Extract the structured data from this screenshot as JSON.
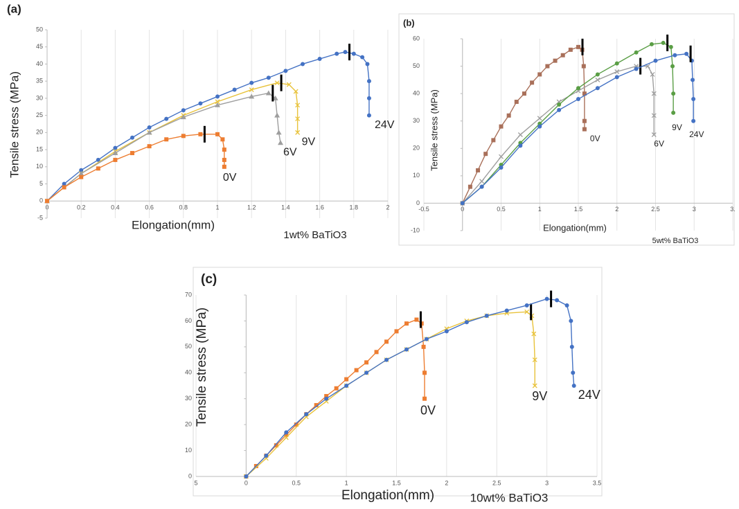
{
  "chart_data": [
    {
      "type": "line",
      "panel_label": "(a)",
      "annotation": "1wt% BaTiO3",
      "x_label": "Elongation(mm)",
      "y_label": "Tensile stress (MPa)",
      "xlim": [
        0,
        2
      ],
      "ylim": [
        -5,
        50
      ],
      "xticks": [
        0,
        0.2,
        0.4,
        0.6,
        0.8,
        1,
        1.2,
        1.4,
        1.6,
        1.8,
        2
      ],
      "yticks": [
        -5,
        0,
        5,
        10,
        15,
        20,
        25,
        30,
        35,
        40,
        45,
        50
      ],
      "grid": "x",
      "series": [
        {
          "name": "24V",
          "color": "#4472c4",
          "marker": "circle",
          "x": [
            0,
            0.1,
            0.2,
            0.3,
            0.4,
            0.5,
            0.6,
            0.7,
            0.8,
            0.9,
            1.0,
            1.1,
            1.2,
            1.3,
            1.4,
            1.5,
            1.6,
            1.7,
            1.75,
            1.8,
            1.85,
            1.88,
            1.89,
            1.89,
            1.89
          ],
          "values": [
            0,
            5,
            9,
            12,
            15.5,
            18.5,
            21.5,
            24,
            26.5,
            28.5,
            30.5,
            32.5,
            34.5,
            36,
            38,
            40,
            41.5,
            43,
            43.5,
            43,
            42,
            40,
            35,
            30,
            25
          ]
        },
        {
          "name": "9V",
          "color": "#e8c23a",
          "marker": "x",
          "x": [
            0,
            0.2,
            0.4,
            0.6,
            0.8,
            1.0,
            1.2,
            1.35,
            1.42,
            1.46,
            1.47,
            1.47,
            1.47
          ],
          "values": [
            0,
            8,
            14.5,
            20,
            25,
            29,
            32.5,
            34.5,
            34,
            32,
            28,
            24,
            20
          ]
        },
        {
          "name": "6V",
          "color": "#9e9e9e",
          "marker": "triangle",
          "x": [
            0,
            0.2,
            0.4,
            0.6,
            0.8,
            1.0,
            1.2,
            1.3,
            1.34,
            1.35,
            1.36,
            1.37
          ],
          "values": [
            0,
            8,
            14,
            20,
            24.5,
            28,
            30.5,
            31.5,
            30,
            25,
            20,
            17
          ]
        },
        {
          "name": "0V",
          "color": "#ed7d31",
          "marker": "square",
          "x": [
            0,
            0.1,
            0.2,
            0.3,
            0.4,
            0.5,
            0.6,
            0.7,
            0.8,
            0.9,
            1.0,
            1.03,
            1.04,
            1.04,
            1.04
          ],
          "values": [
            0,
            4,
            7,
            9.5,
            12,
            14,
            16,
            18,
            19,
            19.5,
            19.5,
            18,
            15,
            12,
            10
          ]
        }
      ]
    },
    {
      "type": "line",
      "panel_label": "(b)",
      "annotation": "5wt% BaTiO3",
      "x_label": "Elongation(mm)",
      "y_label": "Tensile stress (MPa)",
      "xlim": [
        -0.5,
        3.5
      ],
      "ylim": [
        -10,
        60
      ],
      "xticks": [
        -0.5,
        0,
        0.5,
        1,
        1.5,
        2,
        2.5,
        3,
        {
          "value": 3.5,
          "label": "3."
        }
      ],
      "yticks": [
        -10,
        0,
        10,
        20,
        30,
        40,
        50,
        60
      ],
      "grid": "x",
      "series": [
        {
          "name": "0V",
          "color": "#a9705a",
          "marker": "square",
          "x": [
            0,
            0.1,
            0.2,
            0.3,
            0.4,
            0.5,
            0.6,
            0.7,
            0.8,
            0.9,
            1.0,
            1.1,
            1.2,
            1.3,
            1.4,
            1.5,
            1.55,
            1.57,
            1.58,
            1.58,
            1.58
          ],
          "values": [
            0,
            6,
            12,
            18,
            23,
            28,
            32,
            37,
            40,
            44,
            47,
            50,
            52,
            54,
            56,
            57,
            56,
            50,
            40,
            30,
            27
          ]
        },
        {
          "name": "6V",
          "color": "#9e9e9e",
          "marker": "x",
          "x": [
            0,
            0.25,
            0.5,
            0.75,
            1.0,
            1.25,
            1.5,
            1.75,
            2.0,
            2.25,
            2.4,
            2.46,
            2.48,
            2.48,
            2.48
          ],
          "values": [
            0,
            8,
            17,
            25,
            31,
            37,
            41,
            45,
            48,
            50,
            50,
            47,
            40,
            32,
            25
          ]
        },
        {
          "name": "9V",
          "color": "#5a9e45",
          "marker": "circle",
          "x": [
            0,
            0.25,
            0.5,
            0.75,
            1.0,
            1.25,
            1.5,
            1.75,
            2.0,
            2.25,
            2.45,
            2.6,
            2.7,
            2.72,
            2.73,
            2.73
          ],
          "values": [
            0,
            6,
            14,
            22,
            29,
            36,
            42,
            47,
            51,
            55,
            58,
            58.5,
            57,
            50,
            40,
            33
          ]
        },
        {
          "name": "24V",
          "color": "#4472c4",
          "marker": "circle",
          "x": [
            0,
            0.25,
            0.5,
            0.75,
            1.0,
            1.25,
            1.5,
            1.75,
            2.0,
            2.25,
            2.5,
            2.75,
            2.9,
            2.97,
            2.98,
            2.99,
            2.99
          ],
          "values": [
            0,
            6,
            13,
            21,
            28,
            34,
            38,
            42,
            46,
            49,
            52,
            54,
            54.5,
            52,
            45,
            38,
            30
          ]
        }
      ]
    },
    {
      "type": "line",
      "panel_label": "(c)",
      "annotation": "10wt% BaTiO3",
      "x_label": "Elongation(mm)",
      "y_label": "Tensile stress (MPa)",
      "xlim": [
        -0.5,
        3.5
      ],
      "ylim": [
        0,
        70
      ],
      "xticks": [
        {
          "value": -0.5,
          "label": "5"
        },
        0,
        0.5,
        1,
        1.5,
        2,
        2.5,
        3,
        3.5
      ],
      "yticks": [
        0,
        10,
        20,
        30,
        40,
        50,
        60,
        70
      ],
      "grid": "x",
      "series": [
        {
          "name": "0V",
          "color": "#ed7d31",
          "marker": "square",
          "x": [
            0,
            0.1,
            0.2,
            0.3,
            0.4,
            0.5,
            0.6,
            0.7,
            0.8,
            0.9,
            1.0,
            1.1,
            1.2,
            1.3,
            1.4,
            1.5,
            1.6,
            1.7,
            1.75,
            1.77,
            1.78,
            1.78
          ],
          "values": [
            0,
            4,
            8,
            12,
            16,
            20,
            24,
            27.5,
            31,
            34,
            37.5,
            41,
            44,
            48,
            52,
            56,
            59,
            60.5,
            59,
            50,
            40,
            30
          ]
        },
        {
          "name": "9V",
          "color": "#e8c23a",
          "marker": "x",
          "x": [
            0,
            0.2,
            0.4,
            0.6,
            0.8,
            1.0,
            1.2,
            1.4,
            1.6,
            1.8,
            2.0,
            2.2,
            2.4,
            2.6,
            2.8,
            2.85,
            2.87,
            2.88,
            2.88
          ],
          "values": [
            0,
            7,
            15,
            23,
            29,
            35,
            40,
            45,
            49,
            53,
            57,
            60,
            62,
            63,
            63.5,
            62,
            55,
            45,
            35
          ]
        },
        {
          "name": "24V",
          "color": "#4472c4",
          "marker": "circle",
          "x": [
            0,
            0.2,
            0.4,
            0.6,
            0.8,
            1.0,
            1.2,
            1.4,
            1.6,
            1.8,
            2.0,
            2.2,
            2.4,
            2.6,
            2.8,
            3.0,
            3.1,
            3.2,
            3.24,
            3.25,
            3.26,
            3.27
          ],
          "values": [
            0,
            8,
            17,
            24,
            30,
            35,
            40,
            45,
            49,
            53,
            56,
            59.5,
            62,
            64,
            66,
            68.5,
            68,
            66,
            60,
            50,
            40,
            35
          ]
        }
      ]
    }
  ]
}
